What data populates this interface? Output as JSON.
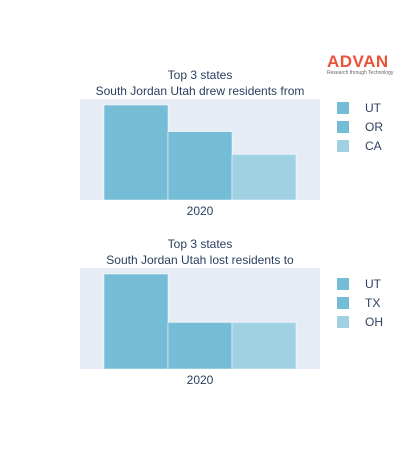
{
  "brand": {
    "name": "ADVAN",
    "tagline": "Research through Technology",
    "color": "#e8543a"
  },
  "chart_data": [
    {
      "type": "bar",
      "title": "Top 3 states",
      "subtitle": "South Jordan Utah drew residents from",
      "categories": [
        "2020"
      ],
      "series": [
        {
          "name": "UT",
          "values": [
            1.0
          ],
          "color": "#75bcd6"
        },
        {
          "name": "OR",
          "values": [
            0.72
          ],
          "color": "#75bcd6"
        },
        {
          "name": "CA",
          "values": [
            0.48
          ],
          "color": "#9fd1e3"
        }
      ],
      "xlabel": "",
      "ylabel": "",
      "ylim": [
        0,
        1.0
      ],
      "grid": true,
      "legend": "right"
    },
    {
      "type": "bar",
      "title": "Top 3 states",
      "subtitle": "South Jordan Utah lost residents to",
      "categories": [
        "2020"
      ],
      "series": [
        {
          "name": "UT",
          "values": [
            1.0
          ],
          "color": "#75bcd6"
        },
        {
          "name": "TX",
          "values": [
            0.49
          ],
          "color": "#75bcd6"
        },
        {
          "name": "OH",
          "values": [
            0.49
          ],
          "color": "#9fd1e3"
        }
      ],
      "xlabel": "",
      "ylabel": "",
      "ylim": [
        0,
        1.0
      ],
      "grid": true,
      "legend": "right"
    }
  ]
}
